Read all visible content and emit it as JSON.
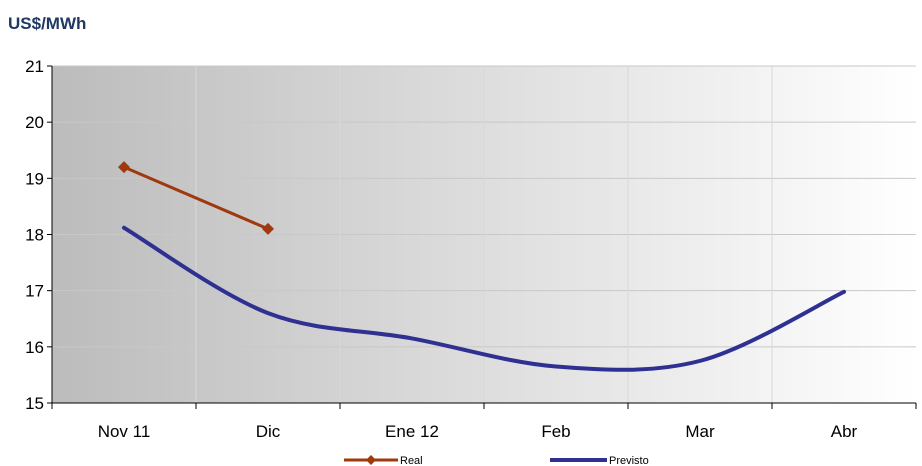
{
  "chart_data": {
    "type": "line",
    "title": "US$/MWh",
    "categories": [
      "Nov 11",
      "Dic",
      "Ene 12",
      "Feb",
      "Mar",
      "Abr"
    ],
    "ylim": [
      15,
      21
    ],
    "yticks": [
      15,
      16,
      17,
      18,
      19,
      20,
      21
    ],
    "grid": true,
    "legend_position": "bottom",
    "series": [
      {
        "name": "Real",
        "color": "#a0390f",
        "marker": "diamond",
        "smooth": false,
        "values": [
          19.2,
          18.1,
          null,
          null,
          null,
          null
        ]
      },
      {
        "name": "Previsto",
        "color": "#2e3192",
        "marker": "none",
        "smooth": true,
        "values": [
          18.12,
          16.6,
          16.15,
          15.65,
          15.75,
          16.98
        ]
      }
    ]
  }
}
